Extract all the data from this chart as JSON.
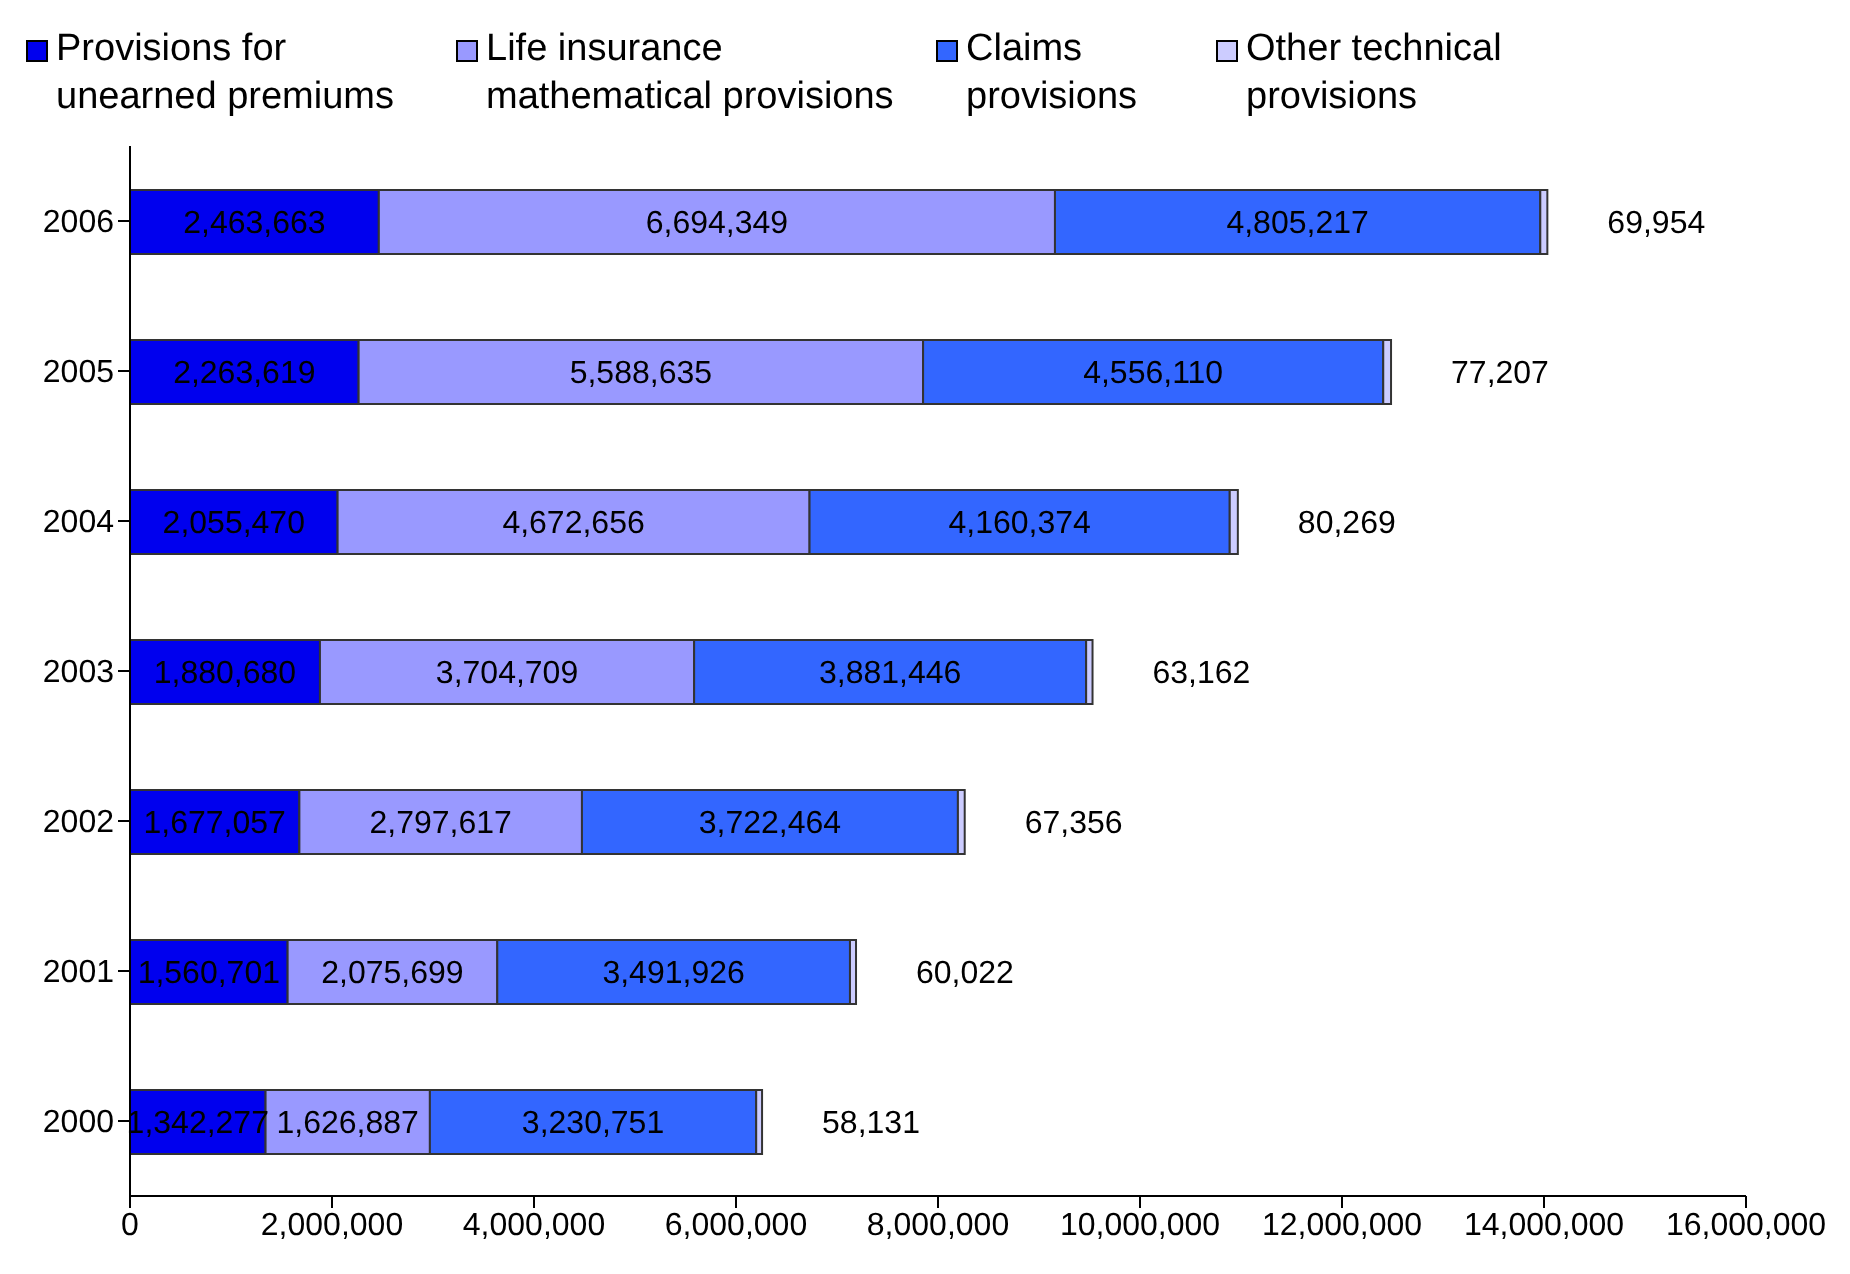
{
  "chart_data": {
    "type": "bar",
    "orientation": "horizontal",
    "stacked": true,
    "categories": [
      "2006",
      "2005",
      "2004",
      "2003",
      "2002",
      "2001",
      "2000"
    ],
    "series": [
      {
        "name": "Provisions for unearned premiums",
        "color": "#0000ee",
        "values": [
          2463663,
          2263619,
          2055470,
          1880680,
          1677057,
          1560701,
          1342277
        ],
        "value_labels": [
          "2,463,663",
          "2,263,619",
          "2,055,470",
          "1,880,680",
          "1,677,057",
          "1,560,701",
          "1,342,277"
        ]
      },
      {
        "name": "Life insurance mathematical provisions",
        "color": "#9999ff",
        "values": [
          6694349,
          5588635,
          4672656,
          3704709,
          2797617,
          2075699,
          1626887
        ],
        "value_labels": [
          "6,694,349",
          "5,588,635",
          "4,672,656",
          "3,704,709",
          "2,797,617",
          "2,075,699",
          "1,626,887"
        ]
      },
      {
        "name": "Claims provisions",
        "color": "#3366ff",
        "values": [
          4805217,
          4556110,
          4160374,
          3881446,
          3722464,
          3491926,
          3230751
        ],
        "value_labels": [
          "4,805,217",
          "4,556,110",
          "4,160,374",
          "3,881,446",
          "3,722,464",
          "3,491,926",
          "3,230,751"
        ]
      },
      {
        "name": "Other technical provisions",
        "color": "#ccccff",
        "values": [
          69954,
          77207,
          80269,
          63162,
          67356,
          60022,
          58131
        ],
        "value_labels": [
          "69,954",
          "77,207",
          "80,269",
          "63,162",
          "67,356",
          "60,022",
          "58,131"
        ]
      }
    ],
    "xlim": [
      0,
      16000000
    ],
    "xticks": [
      0,
      {
        "value": 2000000,
        "label": "2,000,000"
      },
      {
        "value": 4000000,
        "label": "4,000,000"
      },
      {
        "value": 6000000,
        "label": "6,000,000"
      },
      {
        "value": 8000000,
        "label": "8,000,000"
      },
      {
        "value": 10000000,
        "label": "10,000,000"
      },
      {
        "value": 12000000,
        "label": "12,000,000"
      },
      {
        "value": 14000000,
        "label": "14,000,000"
      },
      {
        "value": 16000000,
        "label": "16,000,000"
      }
    ],
    "legend": "top",
    "grid": false
  }
}
